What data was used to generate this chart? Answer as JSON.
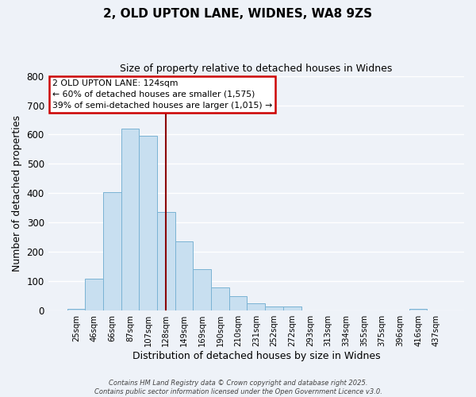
{
  "title": "2, OLD UPTON LANE, WIDNES, WA8 9ZS",
  "subtitle": "Size of property relative to detached houses in Widnes",
  "bar_labels": [
    "25sqm",
    "46sqm",
    "66sqm",
    "87sqm",
    "107sqm",
    "128sqm",
    "149sqm",
    "169sqm",
    "190sqm",
    "210sqm",
    "231sqm",
    "252sqm",
    "272sqm",
    "293sqm",
    "313sqm",
    "334sqm",
    "355sqm",
    "375sqm",
    "396sqm",
    "416sqm",
    "437sqm"
  ],
  "bar_values": [
    5,
    110,
    405,
    620,
    597,
    337,
    237,
    140,
    78,
    50,
    25,
    15,
    15,
    0,
    0,
    0,
    0,
    0,
    0,
    7,
    0
  ],
  "bar_color": "#c8dff0",
  "bar_edgecolor": "#7ab3d4",
  "xlabel": "Distribution of detached houses by size in Widnes",
  "ylabel": "Number of detached properties",
  "ylim": [
    0,
    800
  ],
  "yticks": [
    0,
    100,
    200,
    300,
    400,
    500,
    600,
    700,
    800
  ],
  "vline_x": 5,
  "vline_color": "#8b0000",
  "annotation_title": "2 OLD UPTON LANE: 124sqm",
  "annotation_line1": "← 60% of detached houses are smaller (1,575)",
  "annotation_line2": "39% of semi-detached houses are larger (1,015) →",
  "annotation_box_color": "#cc0000",
  "footer_line1": "Contains HM Land Registry data © Crown copyright and database right 2025.",
  "footer_line2": "Contains public sector information licensed under the Open Government Licence v3.0.",
  "bg_color": "#eef2f8",
  "grid_color": "#ffffff"
}
